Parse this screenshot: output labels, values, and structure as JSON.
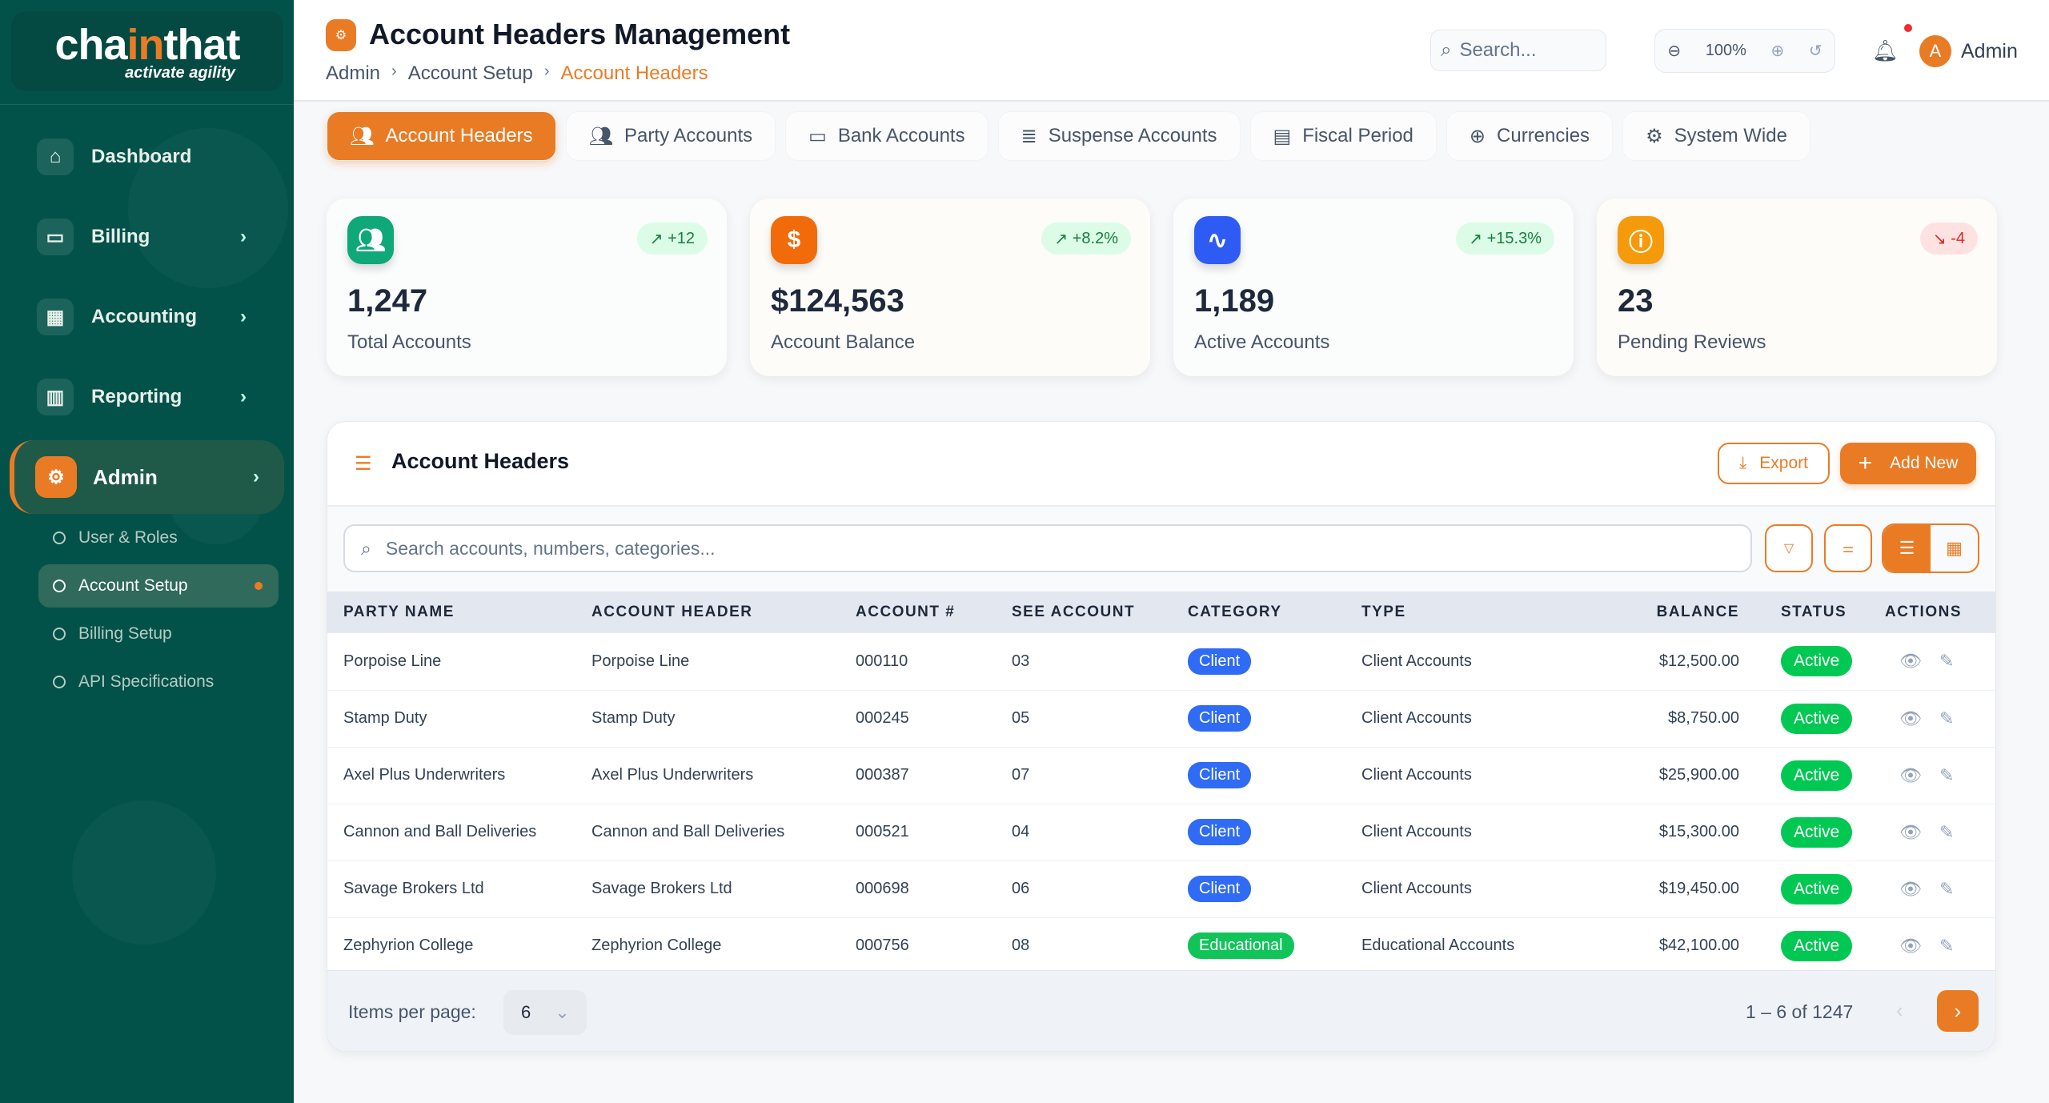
{
  "brand": {
    "name_pre": "cha",
    "name_accent": "in",
    "name_post": "that",
    "tagline": "activate agility"
  },
  "sidebar": {
    "items": [
      {
        "label": "Dashboard",
        "icon": "home-icon"
      },
      {
        "label": "Billing",
        "icon": "card-icon"
      },
      {
        "label": "Accounting",
        "icon": "calculator-icon"
      },
      {
        "label": "Reporting",
        "icon": "bar-chart-icon"
      },
      {
        "label": "Admin",
        "icon": "gear-icon"
      }
    ],
    "admin_sub": [
      "User & Roles",
      "Account Setup",
      "Billing Setup",
      "API Specifications"
    ]
  },
  "header": {
    "title": "Account Headers Management",
    "breadcrumb": [
      "Admin",
      "Account Setup",
      "Account Headers"
    ],
    "search_placeholder": "Search...",
    "zoom": "100%",
    "user_initial": "A",
    "user_name": "Admin"
  },
  "tabs": [
    "Account Headers",
    "Party Accounts",
    "Bank Accounts",
    "Suspense Accounts",
    "Fiscal Period",
    "Currencies",
    "System Wide"
  ],
  "stats": [
    {
      "value": "1,247",
      "label": "Total Accounts",
      "badge": "+12",
      "trend": "up",
      "color": "#0ea879"
    },
    {
      "value": "$124,563",
      "label": "Account Balance",
      "badge": "+8.2%",
      "trend": "up",
      "color": "#f26b0a"
    },
    {
      "value": "1,189",
      "label": "Active Accounts",
      "badge": "+15.3%",
      "trend": "up",
      "color": "#2f5bf5"
    },
    {
      "value": "23",
      "label": "Pending Reviews",
      "badge": "-4",
      "trend": "down",
      "color": "#f59a0b"
    }
  ],
  "table": {
    "title": "Account Headers",
    "export_label": "Export",
    "add_label": "Add New",
    "search_placeholder": "Search accounts, numbers, categories...",
    "columns": [
      "PARTY NAME",
      "ACCOUNT HEADER",
      "ACCOUNT #",
      "SEE ACCOUNT",
      "CATEGORY",
      "TYPE",
      "BALANCE",
      "STATUS",
      "ACTIONS"
    ],
    "rows": [
      {
        "party": "Porpoise Line",
        "header": "Porpoise Line",
        "account": "000110",
        "see": "03",
        "category": "Client",
        "type": "Client Accounts",
        "balance": "$12,500.00",
        "status": "Active"
      },
      {
        "party": "Stamp Duty",
        "header": "Stamp Duty",
        "account": "000245",
        "see": "05",
        "category": "Client",
        "type": "Client Accounts",
        "balance": "$8,750.00",
        "status": "Active"
      },
      {
        "party": "Axel Plus Underwriters",
        "header": "Axel Plus Underwriters",
        "account": "000387",
        "see": "07",
        "category": "Client",
        "type": "Client Accounts",
        "balance": "$25,900.00",
        "status": "Active"
      },
      {
        "party": "Cannon and Ball Deliveries",
        "header": "Cannon and Ball Deliveries",
        "account": "000521",
        "see": "04",
        "category": "Client",
        "type": "Client Accounts",
        "balance": "$15,300.00",
        "status": "Active"
      },
      {
        "party": "Savage Brokers Ltd",
        "header": "Savage Brokers Ltd",
        "account": "000698",
        "see": "06",
        "category": "Client",
        "type": "Client Accounts",
        "balance": "$19,450.00",
        "status": "Active"
      },
      {
        "party": "Zephyrion College",
        "header": "Zephyrion College",
        "account": "000756",
        "see": "08",
        "category": "Educational",
        "type": "Educational Accounts",
        "balance": "$42,100.00",
        "status": "Active"
      }
    ],
    "items_per_page_label": "Items per page:",
    "items_per_page": "6",
    "range": "1 – 6 of 1247"
  },
  "colors": {
    "accent": "#ea7b25",
    "sidebar": "#03524a",
    "client": "#2f6bf5",
    "educational": "#10c45a",
    "active": "#00c853"
  }
}
